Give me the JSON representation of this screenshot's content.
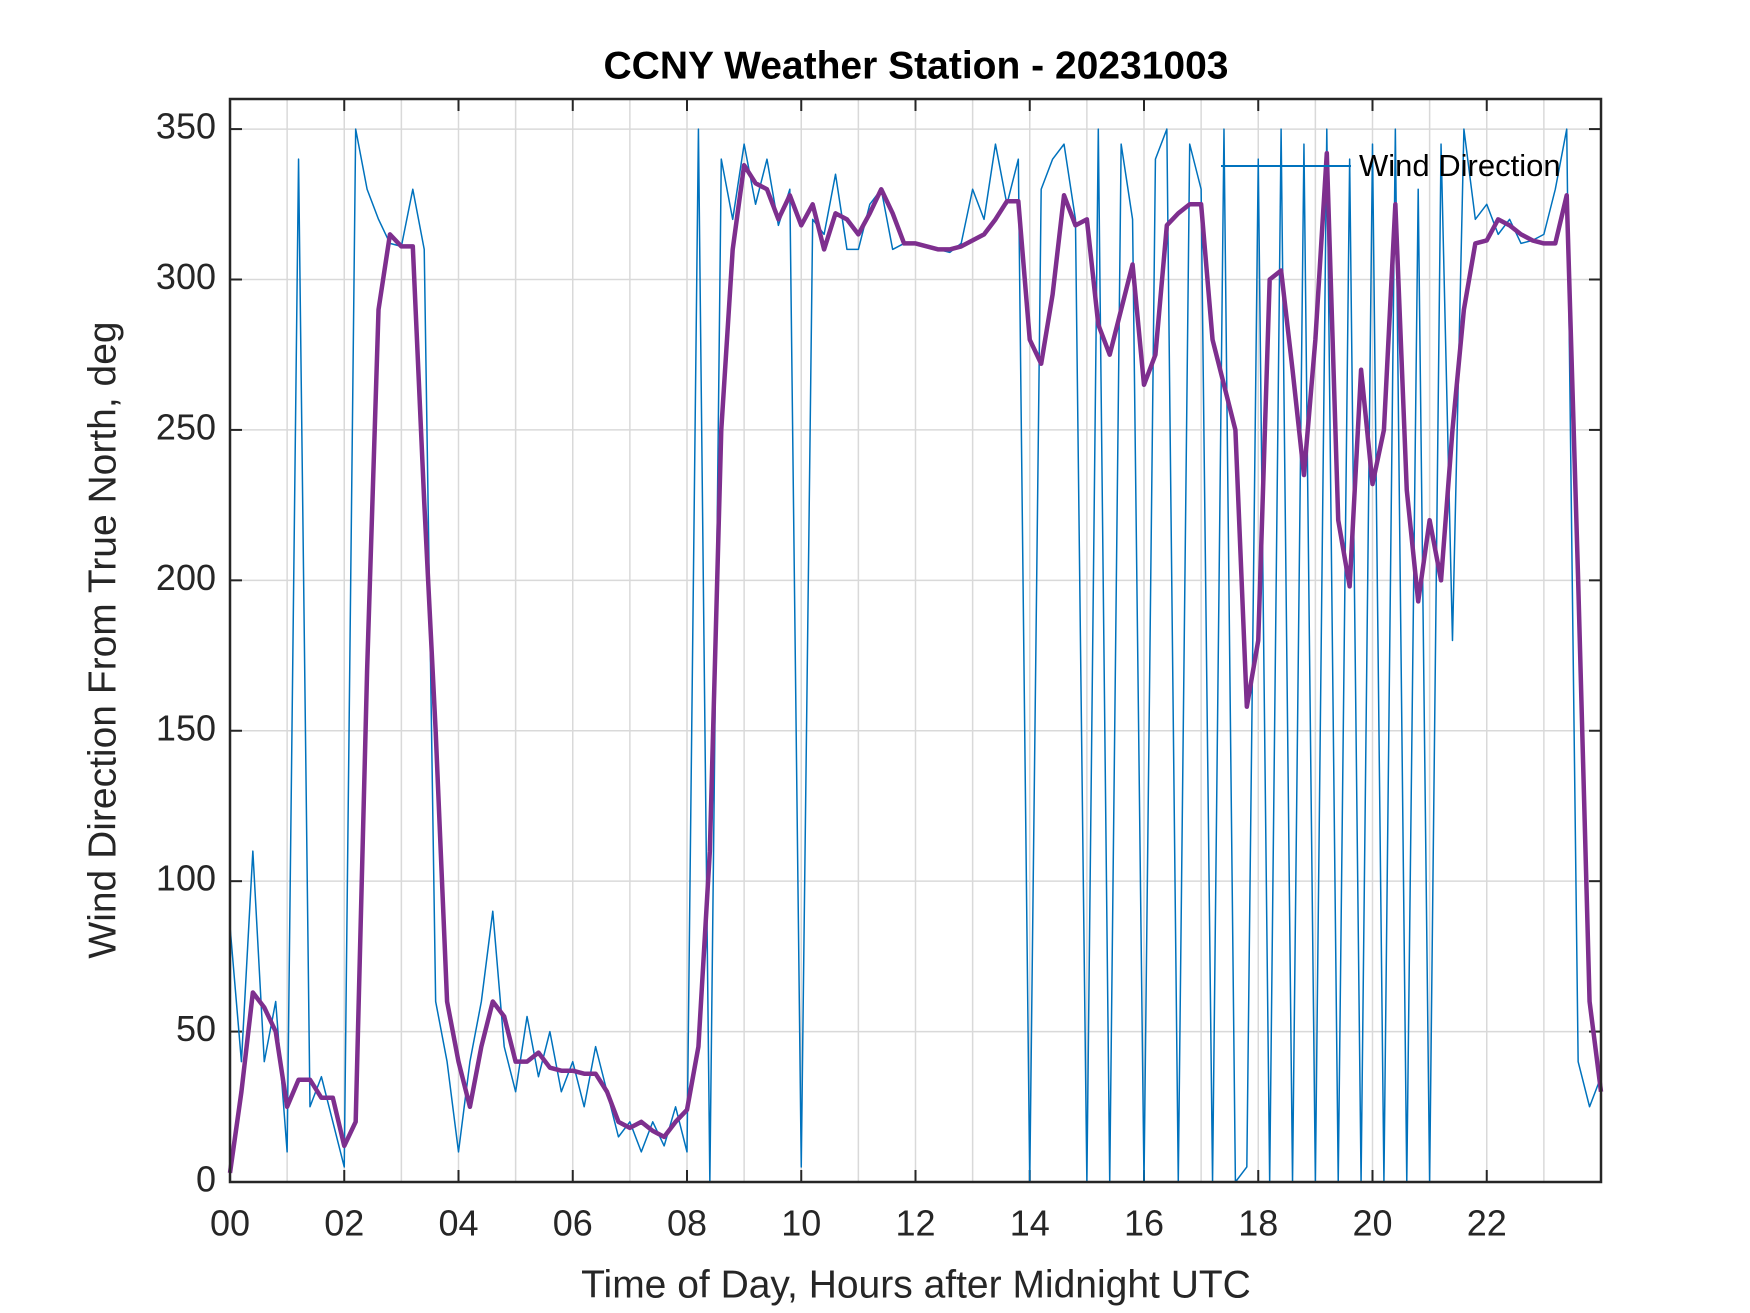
{
  "chart_data": {
    "type": "line",
    "title": "CCNY Weather Station - 20231003",
    "xlabel": "Time of Day, Hours after Midnight UTC",
    "ylabel": "Wind Direction From True North, deg",
    "x": [
      0,
      0.2,
      0.4,
      0.6,
      0.8,
      1,
      1.2,
      1.4,
      1.6,
      1.8,
      2,
      2.2,
      2.4,
      2.6,
      2.8,
      3,
      3.2,
      3.4,
      3.6,
      3.8,
      4,
      4.2,
      4.4,
      4.6,
      4.8,
      5,
      5.2,
      5.4,
      5.6,
      5.8,
      6,
      6.2,
      6.4,
      6.6,
      6.8,
      7,
      7.2,
      7.4,
      7.6,
      7.8,
      8,
      8.2,
      8.4,
      8.6,
      8.8,
      9,
      9.2,
      9.4,
      9.6,
      9.8,
      10,
      10.2,
      10.4,
      10.6,
      10.8,
      11,
      11.2,
      11.4,
      11.6,
      11.8,
      12,
      12.2,
      12.4,
      12.6,
      12.8,
      13,
      13.2,
      13.4,
      13.6,
      13.8,
      14,
      14.2,
      14.4,
      14.6,
      14.8,
      15,
      15.2,
      15.4,
      15.6,
      15.8,
      16,
      16.2,
      16.4,
      16.6,
      16.8,
      17,
      17.2,
      17.4,
      17.6,
      17.8,
      18,
      18.2,
      18.4,
      18.6,
      18.8,
      19,
      19.2,
      19.4,
      19.6,
      19.8,
      20,
      20.2,
      20.4,
      20.6,
      20.8,
      21,
      21.2,
      21.4,
      21.6,
      21.8,
      22,
      22.2,
      22.4,
      22.6,
      22.8,
      23,
      23.2,
      23.4,
      23.6,
      23.8,
      24
    ],
    "series": [
      {
        "name": "Wind Direction",
        "color": "#0072bd",
        "width": 1.5,
        "values": [
          85,
          40,
          110,
          40,
          60,
          10,
          340,
          25,
          35,
          20,
          5,
          350,
          330,
          320,
          312,
          311,
          330,
          310,
          60,
          40,
          10,
          40,
          60,
          90,
          45,
          30,
          55,
          35,
          50,
          30,
          40,
          25,
          45,
          30,
          15,
          20,
          10,
          20,
          12,
          25,
          10,
          350,
          0,
          340,
          320,
          345,
          325,
          340,
          318,
          330,
          5,
          320,
          315,
          335,
          310,
          310,
          325,
          330,
          310,
          312,
          312,
          311,
          310,
          309,
          312,
          330,
          320,
          345,
          325,
          340,
          0,
          330,
          340,
          345,
          320,
          0,
          350,
          0,
          345,
          320,
          0,
          340,
          350,
          0,
          345,
          330,
          0,
          350,
          0,
          5,
          340,
          0,
          350,
          0,
          345,
          0,
          350,
          0,
          340,
          0,
          345,
          0,
          350,
          0,
          330,
          0,
          345,
          180,
          350,
          320,
          325,
          315,
          320,
          312,
          313,
          315,
          330,
          350,
          40,
          25,
          35
        ]
      },
      {
        "color": "#7e2f8e",
        "width": 4.5,
        "values": [
          3,
          30,
          63,
          58,
          50,
          25,
          34,
          34,
          28,
          28,
          12,
          20,
          170,
          290,
          315,
          311,
          311,
          226,
          150,
          60,
          40,
          25,
          45,
          60,
          55,
          40,
          40,
          43,
          38,
          37,
          37,
          36,
          36,
          30,
          20,
          18,
          20,
          17,
          15,
          20,
          24,
          45,
          110,
          250,
          310,
          338,
          332,
          330,
          320,
          328,
          318,
          325,
          310,
          322,
          320,
          315,
          322,
          330,
          322,
          312,
          312,
          311,
          310,
          310,
          311,
          313,
          315,
          320,
          326,
          326,
          280,
          272,
          295,
          328,
          318,
          320,
          285,
          275,
          290,
          305,
          265,
          275,
          318,
          322,
          325,
          325,
          280,
          265,
          250,
          158,
          180,
          300,
          303,
          270,
          235,
          280,
          342,
          220,
          198,
          270,
          232,
          250,
          325,
          230,
          193,
          220,
          200,
          250,
          290,
          312,
          313,
          320,
          318,
          315,
          313,
          312,
          312,
          328,
          200,
          60,
          30
        ]
      }
    ],
    "xlim": [
      0,
      24
    ],
    "xticks": [
      {
        "value": 0,
        "label": "00"
      },
      {
        "value": 2,
        "label": "02"
      },
      {
        "value": 4,
        "label": "04"
      },
      {
        "value": 6,
        "label": "06"
      },
      {
        "value": 8,
        "label": "08"
      },
      {
        "value": 10,
        "label": "10"
      },
      {
        "value": 12,
        "label": "12"
      },
      {
        "value": 14,
        "label": "14"
      },
      {
        "value": 16,
        "label": "16"
      },
      {
        "value": 18,
        "label": "18"
      },
      {
        "value": 20,
        "label": "20"
      },
      {
        "value": 22,
        "label": "22"
      }
    ],
    "xminorticks": [
      1,
      3,
      5,
      7,
      9,
      11,
      13,
      15,
      17,
      19,
      21,
      23
    ],
    "ylim": [
      0,
      360
    ],
    "yticks": [
      0,
      50,
      100,
      150,
      200,
      250,
      300,
      350
    ],
    "grid": true,
    "legend": "upper right"
  }
}
